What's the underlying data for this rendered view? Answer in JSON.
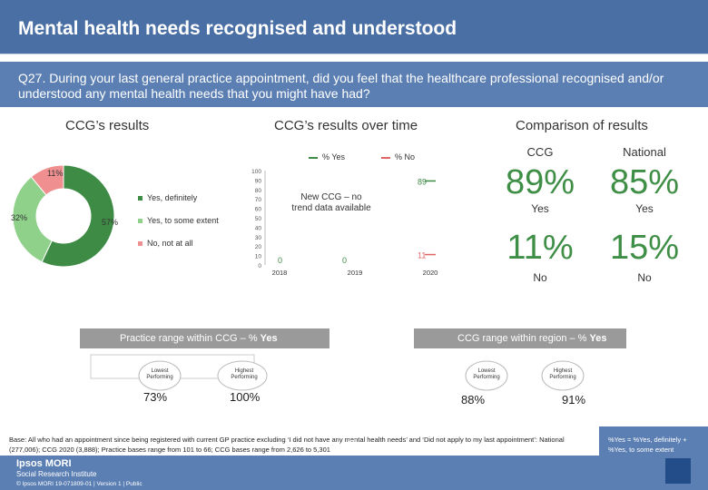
{
  "header": {
    "title": "Mental health needs recognised and understood",
    "question": "Q27. During your last general practice appointment, did you feel that the healthcare professional recognised and/or understood any mental health needs that you might have had?"
  },
  "sections": {
    "ccg_results": "CCG’s results",
    "over_time": "CCG’s results over time",
    "comparison": "Comparison of results"
  },
  "donut": {
    "legend": [
      "Yes, definitely",
      "Yes, to some extent",
      "No, not at all"
    ],
    "slice_labels": [
      "57%",
      "32%",
      "11%"
    ],
    "colors": [
      "#3d8b45",
      "#8fd18a",
      "#f08f8f"
    ]
  },
  "over_time_legend": {
    "yes": "% Yes",
    "no": "% No"
  },
  "chart_data": {
    "type": "line",
    "x": [
      "2018",
      "2019",
      "2020"
    ],
    "ylim": [
      0,
      100
    ],
    "yticks": [
      "100",
      "90",
      "80",
      "70",
      "60",
      "50",
      "40",
      "30",
      "20",
      "10",
      "0"
    ],
    "series": [
      {
        "name": "% Yes",
        "values": [
          0,
          0,
          89
        ],
        "color": "#3d8b45"
      },
      {
        "name": "% No",
        "values": [
          0,
          0,
          11
        ],
        "color": "#e06666"
      }
    ],
    "annotation": "New CCG – no trend data available",
    "data_labels": {
      "yes_2018": "0",
      "yes_2019": "0",
      "yes_2020": "89",
      "no_2020": "11"
    }
  },
  "comparison": {
    "col_ccg": "CCG",
    "col_national": "National",
    "yes_ccg": "89%",
    "yes_national": "85%",
    "yes_label": "Yes",
    "no_ccg": "11%",
    "no_national": "15%",
    "no_label": "No"
  },
  "practice_range": {
    "label": "Practice range within CCG – % ",
    "label_bold": "Yes",
    "lowest_label": "Lowest Performing",
    "highest_label": "Highest Performing",
    "lowest_value": "73%",
    "highest_value": "100%"
  },
  "region_range": {
    "label": "CCG range within region – % ",
    "label_bold": "Yes",
    "lowest_label": "Lowest Performing",
    "highest_label": "Highest Performing",
    "lowest_value": "88%",
    "highest_value": "91%"
  },
  "footer": {
    "base_note": "Base: All who had an appointment since being registered with current GP practice excluding ‘I did not have any mental health needs’ and ‘Did not apply to my last appointment’: National (277,006); CCG 2020 (3,888); Practice bases range from 101 to 66; CCG bases range from 2,626 to 5,301",
    "yes_note": "%Yes = %Yes, definitely + %Yes, to some extent",
    "page_number": "48",
    "brand_line1": "Ipsos MORI",
    "brand_line2": "Social Research Institute",
    "copyright": "© Ipsos MORI    19-071809-01 | Version 1 | Public"
  }
}
